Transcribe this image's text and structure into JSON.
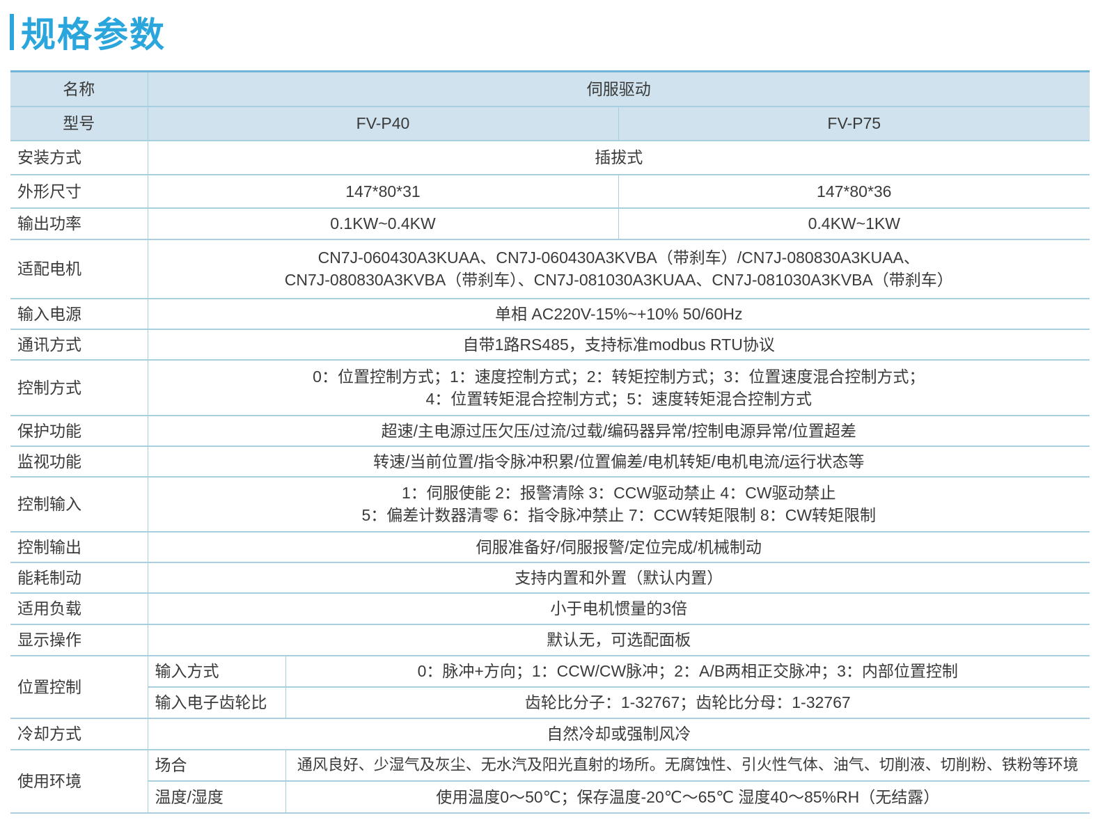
{
  "title": "规格参数",
  "colors": {
    "accent": "#2aa6dc",
    "header_bg": "#cfe2ed",
    "border": "#a8cfe0"
  },
  "header": {
    "name_label": "名称",
    "name_value": "伺服驱动",
    "model_label": "型号",
    "models": [
      "FV-P40",
      "FV-P75"
    ]
  },
  "rows": {
    "install": {
      "label": "安装方式",
      "value": "插拔式"
    },
    "size": {
      "label": "外形尺寸",
      "p40": "147*80*31",
      "p75": "147*80*36"
    },
    "power": {
      "label": "输出功率",
      "p40": "0.1KW~0.4KW",
      "p75": "0.4KW~1KW"
    },
    "motor": {
      "label": "适配电机",
      "line1": "CN7J-060430A3KUAA、CN7J-060430A3KVBA（带刹车）/CN7J-080830A3KUAA、",
      "line2": "CN7J-080830A3KVBA（带刹车）、CN7J-081030A3KUAA、CN7J-081030A3KVBA（带刹车）"
    },
    "input_power": {
      "label": "输入电源",
      "value": "单相 AC220V-15%~+10%  50/60Hz"
    },
    "comm": {
      "label": "通讯方式",
      "value": "自带1路RS485，支持标准modbus RTU协议"
    },
    "control_mode": {
      "label": "控制方式",
      "line1": "0：位置控制方式；1：速度控制方式；2：转矩控制方式；3：位置速度混合控制方式；",
      "line2": "4：位置转矩混合控制方式；5：速度转矩混合控制方式"
    },
    "protect": {
      "label": "保护功能",
      "value": "超速/主电源过压欠压/过流/过载/编码器异常/控制电源异常/位置超差"
    },
    "monitor": {
      "label": "监视功能",
      "value": "转速/当前位置/指令脉冲积累/位置偏差/电机转矩/电机电流/运行状态等"
    },
    "ctrl_in": {
      "label": "控制输入",
      "line1": "1：伺服使能 2：报警清除 3：CCW驱动禁止 4：CW驱动禁止",
      "line2": "5：偏差计数器清零  6：指令脉冲禁止  7：CCW转矩限制  8：CW转矩限制"
    },
    "ctrl_out": {
      "label": "控制输出",
      "value": "伺服准备好/伺服报警/定位完成/机械制动"
    },
    "brake": {
      "label": "能耗制动",
      "value": "支持内置和外置（默认内置）"
    },
    "load": {
      "label": "适用负载",
      "value": "小于电机惯量的3倍"
    },
    "display": {
      "label": "显示操作",
      "value": "默认无，可选配面板"
    },
    "position": {
      "label": "位置控制",
      "input_mode_label": "输入方式",
      "input_mode": "0：脉冲+方向；1：CCW/CW脉冲；2：A/B两相正交脉冲；3：内部位置控制",
      "gear_label": "输入电子齿轮比",
      "gear": "齿轮比分子：1-32767；齿轮比分母：1-32767"
    },
    "cooling": {
      "label": "冷却方式",
      "value": "自然冷却或强制风冷"
    },
    "env": {
      "label": "使用环境",
      "place_label": "场合",
      "place": "通风良好、少湿气及灰尘、无水汽及阳光直射的场所。无腐蚀性、引火性气体、油气、切削液、切削粉、铁粉等环境",
      "temp_label": "温度/湿度",
      "temp": "使用温度0～50℃；保存温度-20℃～65℃  湿度40～85%RH（无结露）"
    }
  }
}
